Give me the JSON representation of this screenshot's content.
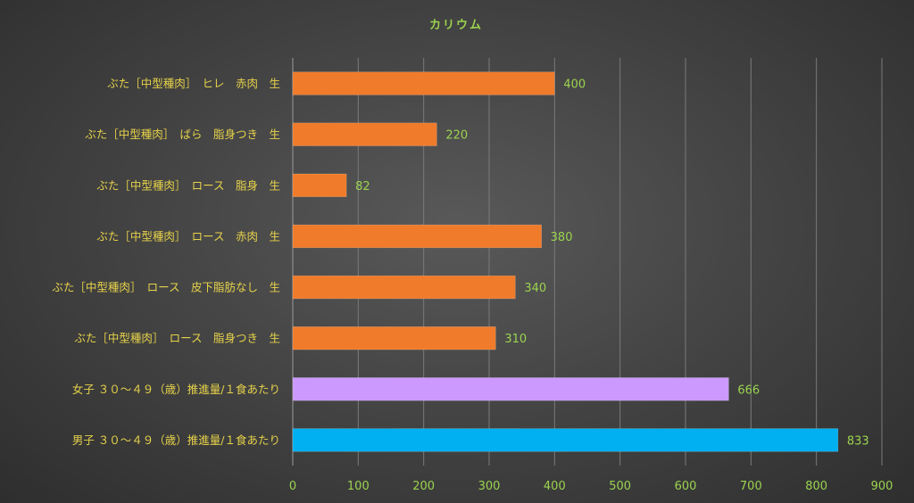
{
  "chart_data": {
    "type": "bar",
    "orientation": "horizontal",
    "title": "カリウム",
    "categories": [
      "ぶた［中型種肉］　ヒレ　赤肉　生",
      "ぶた［中型種肉］　ばら　脂身つき　生",
      "ぶた［中型種肉］　ロース　脂身　生",
      "ぶた［中型種肉］　ロース　赤肉　生",
      "ぶた［中型種肉］　ロース　皮下脂肪なし　生",
      "ぶた［中型種肉］　ロース　脂身つき　生",
      "女子 ３０～４９（歳）推進量/１食あたり",
      "男子 ３０～４９（歳）推進量/１食あたり"
    ],
    "values": [
      400,
      220,
      82,
      380,
      340,
      310,
      666,
      833
    ],
    "value_labels": [
      "400",
      "220",
      "82",
      "380",
      "340",
      "310",
      "666",
      "833"
    ],
    "bar_colors": [
      "#f07b2a",
      "#f07b2a",
      "#f07b2a",
      "#f07b2a",
      "#f07b2a",
      "#f07b2a",
      "#cc99ff",
      "#00b0f0"
    ],
    "xlim": [
      0,
      900
    ],
    "xticks": [
      0,
      100,
      200,
      300,
      400,
      500,
      600,
      700,
      800,
      900
    ],
    "xtick_labels": [
      "0",
      "100",
      "200",
      "300",
      "400",
      "500",
      "600",
      "700",
      "800",
      "900"
    ],
    "grid": "vertical",
    "xlabel": "",
    "ylabel": ""
  }
}
